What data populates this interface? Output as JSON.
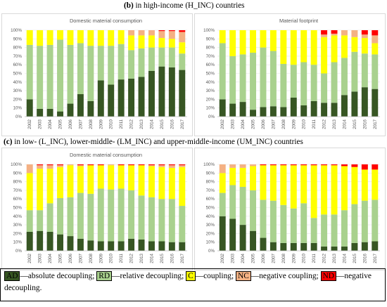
{
  "headings": [
    {
      "letter": "(b)",
      "text": " in high-income (H_INC) countries"
    },
    {
      "letter": "(c)",
      "text": " in low- (L_INC), lower-middle- (LM_INC) and upper-middle-income (UM_INC) countries"
    }
  ],
  "colors": {
    "AD": "#375623",
    "RD": "#a9d18e",
    "C": "#ffff00",
    "NC": "#f4b183",
    "ND": "#ff0000"
  },
  "chart_data": [
    {
      "type": "bar",
      "stacked": true,
      "title": "Domestic material consumption",
      "categories": [
        "2002",
        "2003",
        "2004",
        "2005",
        "2006",
        "2007",
        "2008",
        "2009",
        "2010",
        "2011",
        "2012",
        "2013",
        "2014",
        "2015",
        "2016",
        "2017"
      ],
      "ylim": [
        0,
        100
      ],
      "yticks": [
        "0%",
        "10%",
        "20%",
        "30%",
        "40%",
        "50%",
        "60%",
        "70%",
        "80%",
        "90%",
        "100%"
      ],
      "series": [
        {
          "key": "AD",
          "values": [
            20,
            9,
            9,
            6,
            15,
            26,
            18,
            42,
            37,
            43,
            44,
            46,
            53,
            58,
            57,
            54
          ]
        },
        {
          "key": "RD",
          "values": [
            63,
            73,
            74,
            83,
            68,
            59,
            64,
            40,
            45,
            41,
            33,
            33,
            27,
            22,
            23,
            19
          ]
        },
        {
          "key": "C",
          "values": [
            17,
            18,
            17,
            11,
            17,
            15,
            18,
            18,
            18,
            16,
            17,
            15,
            14,
            11,
            10,
            13
          ]
        },
        {
          "key": "NC",
          "values": [
            0,
            0,
            0,
            0,
            0,
            0,
            0,
            0,
            0,
            0,
            6,
            6,
            6,
            8,
            9,
            12
          ]
        },
        {
          "key": "ND",
          "values": [
            0,
            0,
            0,
            0,
            0,
            0,
            0,
            0,
            0,
            0,
            0,
            0,
            0,
            1,
            1,
            2
          ]
        }
      ]
    },
    {
      "type": "bar",
      "stacked": true,
      "title": "Material footprint",
      "categories": [
        "2002",
        "2003",
        "2004",
        "2005",
        "2006",
        "2007",
        "2008",
        "2009",
        "2010",
        "2011",
        "2012",
        "2013",
        "2014",
        "2015",
        "2016",
        "2017"
      ],
      "ylim": [
        0,
        100
      ],
      "yticks": [
        "0%",
        "10%",
        "20%",
        "30%",
        "40%",
        "50%",
        "60%",
        "70%",
        "80%",
        "90%",
        "100%"
      ],
      "series": [
        {
          "key": "AD",
          "values": [
            20,
            15,
            17,
            8,
            11,
            12,
            11,
            22,
            13,
            18,
            16,
            16,
            25,
            29,
            34,
            32
          ]
        },
        {
          "key": "RD",
          "values": [
            65,
            55,
            55,
            66,
            69,
            64,
            50,
            38,
            50,
            42,
            34,
            47,
            43,
            46,
            39,
            40
          ]
        },
        {
          "key": "C",
          "values": [
            15,
            30,
            28,
            26,
            20,
            24,
            39,
            40,
            37,
            40,
            42,
            31,
            26,
            17,
            18,
            13
          ]
        },
        {
          "key": "NC",
          "values": [
            0,
            0,
            0,
            0,
            0,
            0,
            0,
            0,
            0,
            0,
            3,
            2,
            6,
            8,
            4,
            9
          ]
        },
        {
          "key": "ND",
          "values": [
            0,
            0,
            0,
            0,
            0,
            0,
            0,
            0,
            0,
            0,
            5,
            4,
            0,
            0,
            5,
            6
          ]
        }
      ]
    },
    {
      "type": "bar",
      "stacked": true,
      "title": "Domestic material consumption",
      "categories": [
        "2002",
        "2003",
        "2004",
        "2005",
        "2006",
        "2007",
        "2008",
        "2009",
        "2010",
        "2011",
        "2012",
        "2013",
        "2014",
        "2015",
        "2016",
        "2017"
      ],
      "ylim": [
        0,
        100
      ],
      "yticks": [
        "0%",
        "10%",
        "20%",
        "30%",
        "40%",
        "50%",
        "60%",
        "70%",
        "80%",
        "90%",
        "100%"
      ],
      "series": [
        {
          "key": "AD",
          "values": [
            22,
            23,
            22,
            19,
            17,
            14,
            12,
            11,
            11,
            11,
            14,
            13,
            11,
            11,
            10,
            10
          ]
        },
        {
          "key": "RD",
          "values": [
            25,
            24,
            33,
            42,
            45,
            53,
            54,
            61,
            60,
            61,
            56,
            51,
            51,
            49,
            50,
            42
          ]
        },
        {
          "key": "C",
          "values": [
            43,
            48,
            40,
            36,
            37,
            31,
            33,
            27,
            28,
            27,
            29,
            35,
            36,
            37,
            36,
            45
          ]
        },
        {
          "key": "NC",
          "values": [
            10,
            4,
            4,
            2,
            1,
            1,
            0,
            0,
            1,
            0,
            0,
            0,
            1,
            2,
            3,
            2
          ]
        },
        {
          "key": "ND",
          "values": [
            0,
            1,
            1,
            1,
            0,
            1,
            1,
            1,
            0,
            1,
            1,
            1,
            1,
            1,
            1,
            1
          ]
        }
      ]
    },
    {
      "type": "bar",
      "stacked": true,
      "title": "",
      "categories": [
        "2002",
        "2003",
        "2004",
        "2005",
        "2006",
        "2007",
        "2008",
        "2009",
        "2010",
        "2011",
        "2012",
        "2013",
        "2014",
        "2015",
        "2016",
        "2017"
      ],
      "ylim": [
        0,
        100
      ],
      "yticks": [
        "0%",
        "10%",
        "20%",
        "30%",
        "40%",
        "50%",
        "60%",
        "70%",
        "80%",
        "90%",
        "100%"
      ],
      "series": [
        {
          "key": "AD",
          "values": [
            40,
            37,
            30,
            23,
            15,
            10,
            9,
            9,
            9,
            9,
            5,
            5,
            5,
            9,
            10,
            11
          ]
        },
        {
          "key": "RD",
          "values": [
            27,
            39,
            44,
            47,
            44,
            48,
            44,
            40,
            46,
            29,
            37,
            37,
            42,
            45,
            48,
            48
          ]
        },
        {
          "key": "C",
          "values": [
            23,
            20,
            22,
            28,
            40,
            41,
            46,
            50,
            44,
            61,
            57,
            57,
            51,
            43,
            36,
            35
          ]
        },
        {
          "key": "NC",
          "values": [
            10,
            4,
            4,
            2,
            0,
            0,
            0,
            0,
            0,
            0,
            0,
            0,
            0,
            0,
            0,
            0
          ]
        },
        {
          "key": "ND",
          "values": [
            0,
            0,
            0,
            0,
            1,
            1,
            1,
            1,
            1,
            1,
            1,
            1,
            2,
            3,
            6,
            6
          ]
        }
      ]
    }
  ],
  "legend": [
    {
      "key": "AD",
      "code": "AD",
      "desc": "—absolute decoupling; "
    },
    {
      "key": "RD",
      "code": "RD",
      "desc": "—relative decoupling; "
    },
    {
      "key": "C",
      "code": "C",
      "desc": "—coupling; "
    },
    {
      "key": "NC",
      "code": "NC",
      "desc": "—negative coupling; "
    },
    {
      "key": "ND",
      "code": "ND",
      "desc": "—negative decoupling."
    }
  ]
}
